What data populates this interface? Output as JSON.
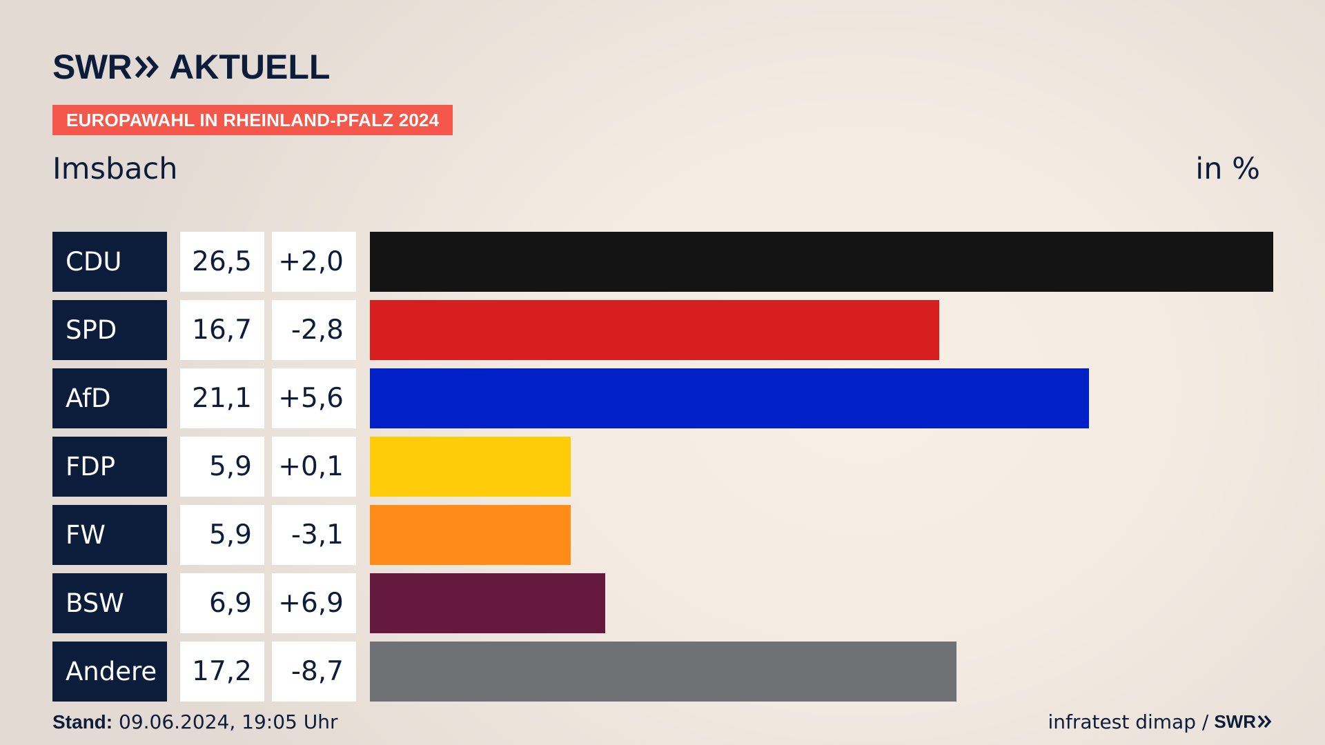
{
  "brand": {
    "swr": "SWR",
    "aktuell": "AKTUELL"
  },
  "banner": "EUROPAWAHL IN RHEINLAND-PFALZ 2024",
  "place": "Imsbach",
  "unit": "in %",
  "footer": {
    "stand_label": "Stand:",
    "stand_value": "09.06.2024, 19:05 Uhr",
    "source": "infratest dimap /",
    "source_brand": "SWR"
  },
  "chart_data": {
    "type": "bar",
    "orientation": "horizontal",
    "categories": [
      "CDU",
      "SPD",
      "AfD",
      "FDP",
      "FW",
      "BSW",
      "Andere"
    ],
    "values": [
      26.5,
      16.7,
      21.1,
      5.9,
      5.9,
      6.9,
      17.2
    ],
    "value_labels": [
      "26,5",
      "16,7",
      "21,1",
      "5,9",
      "5,9",
      "6,9",
      "17,2"
    ],
    "diff_labels": [
      "+2,0",
      "-2,8",
      "+5,6",
      "+0,1",
      "-3,1",
      "+6,9",
      "-8,7"
    ],
    "colors": [
      "#141414",
      "#d71f20",
      "#0021c8",
      "#ffcc0a",
      "#ff8c19",
      "#66193f",
      "#707174"
    ],
    "title": "Imsbach",
    "ylabel": "in %",
    "xlim": [
      0,
      26.5
    ],
    "grid": false,
    "legend": "none"
  }
}
